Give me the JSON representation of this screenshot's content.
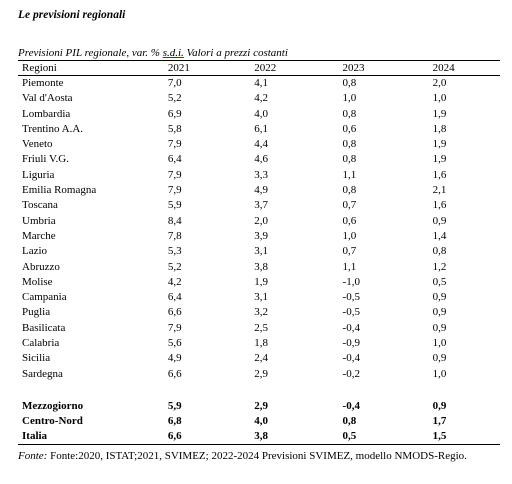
{
  "heading": "Le previsioni regionali",
  "caption": {
    "prefix": "Previsioni PIL regionale, var. % ",
    "sdi": "s.d.i.",
    "suffix": " Valori a prezzi costanti"
  },
  "table": {
    "headers": [
      "Regioni",
      "2021",
      "2022",
      "2023",
      "2024"
    ],
    "rows": [
      [
        "Piemonte",
        "7,0",
        "4,1",
        "0,8",
        "2,0"
      ],
      [
        "Val d'Aosta",
        "5,2",
        "4,2",
        "1,0",
        "1,0"
      ],
      [
        "Lombardia",
        "6,9",
        "4,0",
        "0,8",
        "1,9"
      ],
      [
        "Trentino A.A.",
        "5,8",
        "6,1",
        "0,6",
        "1,8"
      ],
      [
        "Veneto",
        "7,9",
        "4,4",
        "0,8",
        "1,9"
      ],
      [
        "Friuli V.G.",
        "6,4",
        "4,6",
        "0,8",
        "1,9"
      ],
      [
        "Liguria",
        "7,9",
        "3,3",
        "1,1",
        "1,6"
      ],
      [
        "Emilia Romagna",
        "7,9",
        "4,9",
        "0,8",
        "2,1"
      ],
      [
        "Toscana",
        "5,9",
        "3,7",
        "0,7",
        "1,6"
      ],
      [
        "Umbria",
        "8,4",
        "2,0",
        "0,6",
        "0,9"
      ],
      [
        "Marche",
        "7,8",
        "3,9",
        "1,0",
        "1,4"
      ],
      [
        "Lazio",
        "5,3",
        "3,1",
        "0,7",
        "0,8"
      ],
      [
        "Abruzzo",
        "5,2",
        "3,8",
        "1,1",
        "1,2"
      ],
      [
        "Molise",
        "4,2",
        "1,9",
        "-1,0",
        "0,5"
      ],
      [
        "Campania",
        "6,4",
        "3,1",
        "-0,5",
        "0,9"
      ],
      [
        "Puglia",
        "6,6",
        "3,2",
        "-0,5",
        "0,9"
      ],
      [
        "Basilicata",
        "7,9",
        "2,5",
        "-0,4",
        "0,9"
      ],
      [
        "Calabria",
        "5,6",
        "1,8",
        "-0,9",
        "1,0"
      ],
      [
        "Sicilia",
        "4,9",
        "2,4",
        "-0,4",
        "0,9"
      ],
      [
        "Sardegna",
        "6,6",
        "2,9",
        "-0,2",
        "1,0"
      ]
    ],
    "totals": [
      [
        "Mezzogiorno",
        "5,9",
        "2,9",
        "-0,4",
        "0,9"
      ],
      [
        "Centro-Nord",
        "6,8",
        "4,0",
        "0,8",
        "1,7"
      ],
      [
        "Italia",
        "6,6",
        "3,8",
        "0,5",
        "1,5"
      ]
    ]
  },
  "source": {
    "label": "Fonte:",
    "text": " Fonte:2020, ISTAT;2021, SVIMEZ; 2022-2024 Previsioni SVIMEZ, modello NMODS-Regio."
  }
}
